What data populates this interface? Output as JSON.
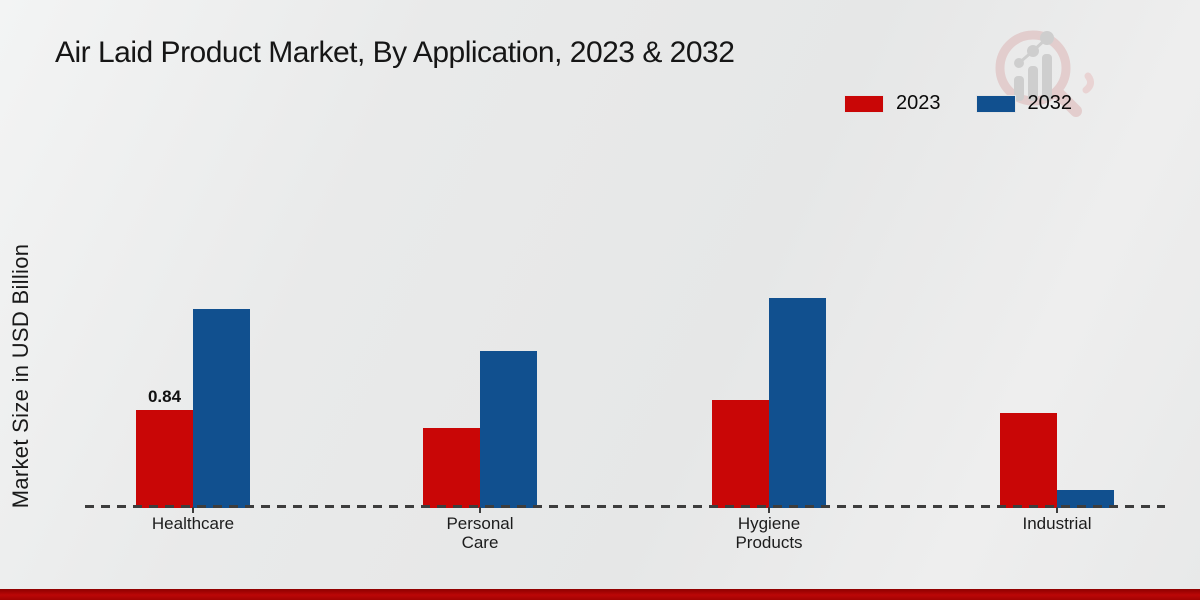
{
  "title": "Air Laid Product Market, By Application, 2023 & 2032",
  "ylabel": "Market Size in USD Billion",
  "colors": {
    "series_2023": "#c90606",
    "series_2032": "#11508f",
    "footer_accent": "#b00505",
    "axis": "#3d3d3d"
  },
  "logo": {
    "name": "magnifier-growth-watermark",
    "glass_color": "#e0c2c2",
    "bars_color": "#c4c4c4"
  },
  "chart_data": {
    "type": "bar",
    "title": "Air Laid Product Market, By Application, 2023 & 2032",
    "xlabel": "",
    "ylabel": "Market Size in USD Billion",
    "categories": [
      "Healthcare",
      "Personal Care",
      "Hygiene Products",
      "Industrial"
    ],
    "series": [
      {
        "name": "2023",
        "color": "#c90606",
        "values": [
          0.84,
          0.68,
          0.93,
          0.81
        ],
        "data_labels": [
          "0.84",
          null,
          null,
          null
        ]
      },
      {
        "name": "2032",
        "color": "#11508f",
        "values": [
          1.71,
          1.35,
          1.81,
          0.15
        ],
        "data_labels": [
          null,
          null,
          null,
          null
        ]
      }
    ],
    "ylim": [
      0,
      2.0
    ],
    "grid": false,
    "y_axis_ticks_visible": false,
    "baseline_style": "dashed",
    "legend_position": "top-right"
  }
}
